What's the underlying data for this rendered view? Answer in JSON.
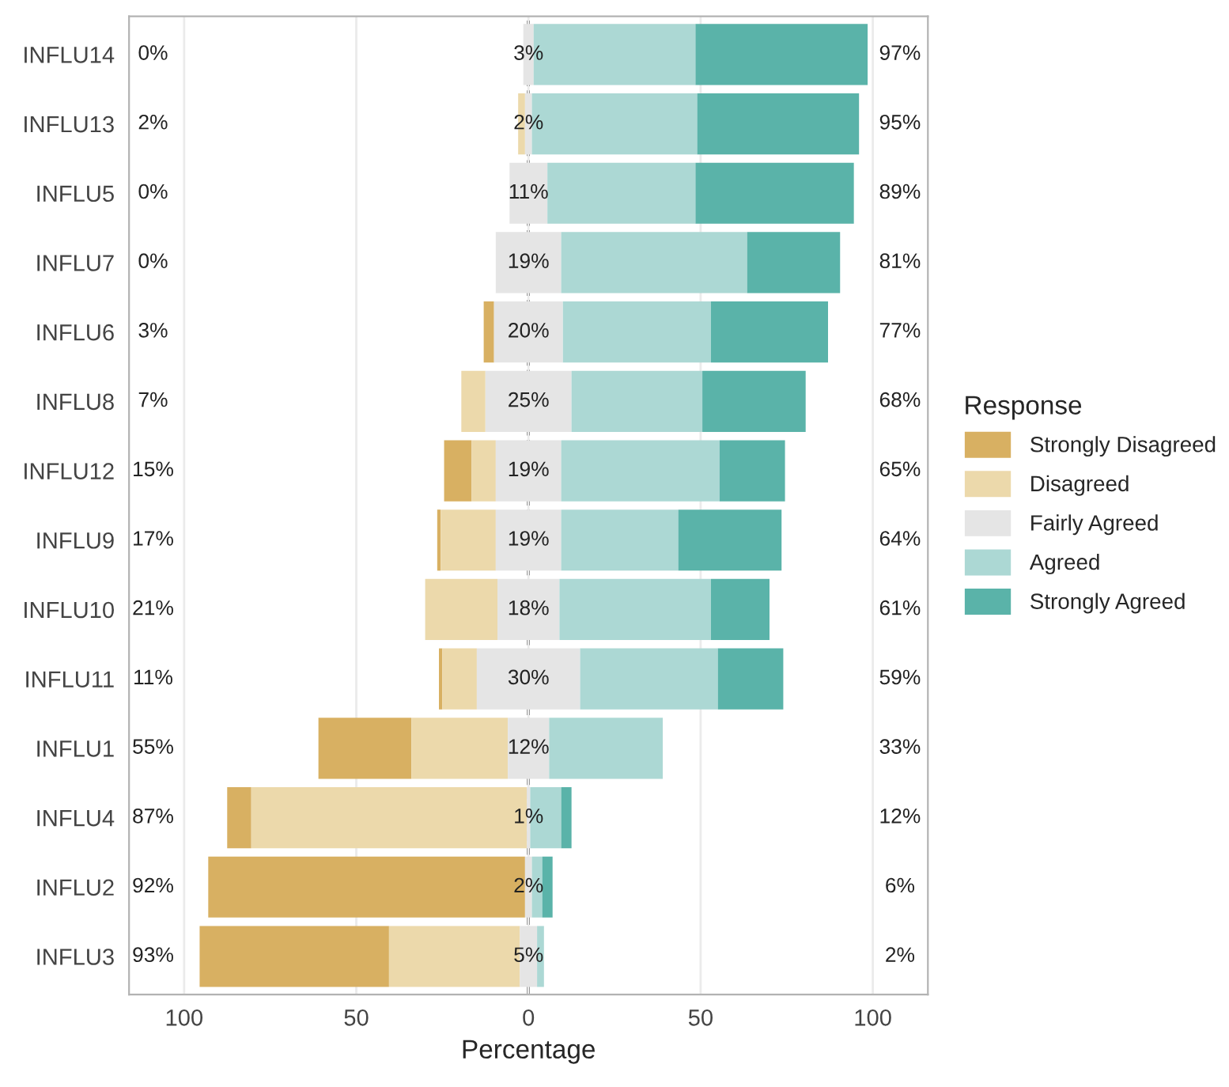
{
  "chart_data": {
    "type": "bar",
    "orientation": "horizontal",
    "xlabel": "Percentage",
    "legend_title": "Response",
    "legend": "right",
    "grid": "x",
    "categories": [
      "INFLU14",
      "INFLU13",
      "INFLU5",
      "INFLU7",
      "INFLU6",
      "INFLU8",
      "INFLU12",
      "INFLU9",
      "INFLU10",
      "INFLU11",
      "INFLU1",
      "INFLU4",
      "INFLU2",
      "INFLU3"
    ],
    "xlim": [
      -116,
      116
    ],
    "xticks": [
      {
        "value": -100,
        "label": "100"
      },
      {
        "value": -50,
        "label": "50"
      },
      0,
      50,
      100
    ],
    "series": [
      {
        "name": "Strongly Disagreed",
        "color": "#d8b062",
        "values": [
          0,
          0,
          0,
          0,
          3,
          0,
          8,
          1,
          0,
          1,
          27,
          7,
          92,
          55
        ],
        "base": [
          null,
          null,
          null,
          null,
          -13,
          null,
          -24.5,
          -26.5,
          null,
          -26,
          -61,
          -87.5,
          -93,
          -95.5
        ]
      },
      {
        "name": "Disagreed",
        "color": "#ecd9ab",
        "values": [
          0,
          2,
          0,
          0,
          0,
          7,
          7,
          16,
          21,
          10,
          28,
          80,
          0,
          38
        ],
        "base": [
          null,
          -3,
          null,
          null,
          null,
          -19.5,
          -16.5,
          -25.5,
          -30,
          -25,
          -34,
          -80.5,
          null,
          -40.5
        ]
      },
      {
        "name": "Fairly Agreed",
        "color": "#e5e5e5",
        "values": [
          3,
          2,
          11,
          19,
          20,
          25,
          19,
          19,
          18,
          30,
          12,
          1,
          2,
          5
        ],
        "base": [
          -1.5,
          -1,
          -5.5,
          -9.5,
          -10,
          -12.5,
          -9.5,
          -9.5,
          -9,
          -15,
          -6,
          -0.5,
          -1,
          -2.5
        ]
      },
      {
        "name": "Agreed",
        "color": "#acd8d4",
        "values": [
          47,
          48,
          43,
          54,
          43,
          38,
          46,
          34,
          44,
          40,
          33,
          9,
          3,
          2
        ],
        "base": [
          1.5,
          1,
          5.5,
          9.5,
          10,
          12.5,
          9.5,
          9.5,
          9,
          15,
          6,
          0.5,
          1,
          2.5
        ]
      },
      {
        "name": "Strongly Agreed",
        "color": "#5ab3a9",
        "values": [
          50,
          47,
          46,
          27,
          34,
          30,
          19,
          30,
          17,
          19,
          0,
          3,
          3,
          0
        ],
        "base": [
          48.5,
          49,
          48.5,
          63.5,
          53,
          50.5,
          55.5,
          43.5,
          53,
          55,
          null,
          9.5,
          4,
          null
        ]
      }
    ],
    "ref_lines": [
      {
        "axis": "x",
        "value": 0,
        "color": "#000000",
        "line_style": "dashed"
      }
    ],
    "annotations": [
      "0%",
      "2%",
      "0%",
      "0%",
      "3%",
      "7%",
      "15%",
      "17%",
      "21%",
      "11%",
      "55%",
      "87%",
      "92%",
      "93%",
      "3%",
      "2%",
      "11%",
      "19%",
      "20%",
      "25%",
      "19%",
      "19%",
      "18%",
      "30%",
      "12%",
      "1%",
      "2%",
      "5%",
      "97%",
      "95%",
      "89%",
      "81%",
      "77%",
      "68%",
      "65%",
      "64%",
      "61%",
      "59%",
      "33%",
      "12%",
      "6%",
      "2%"
    ]
  }
}
